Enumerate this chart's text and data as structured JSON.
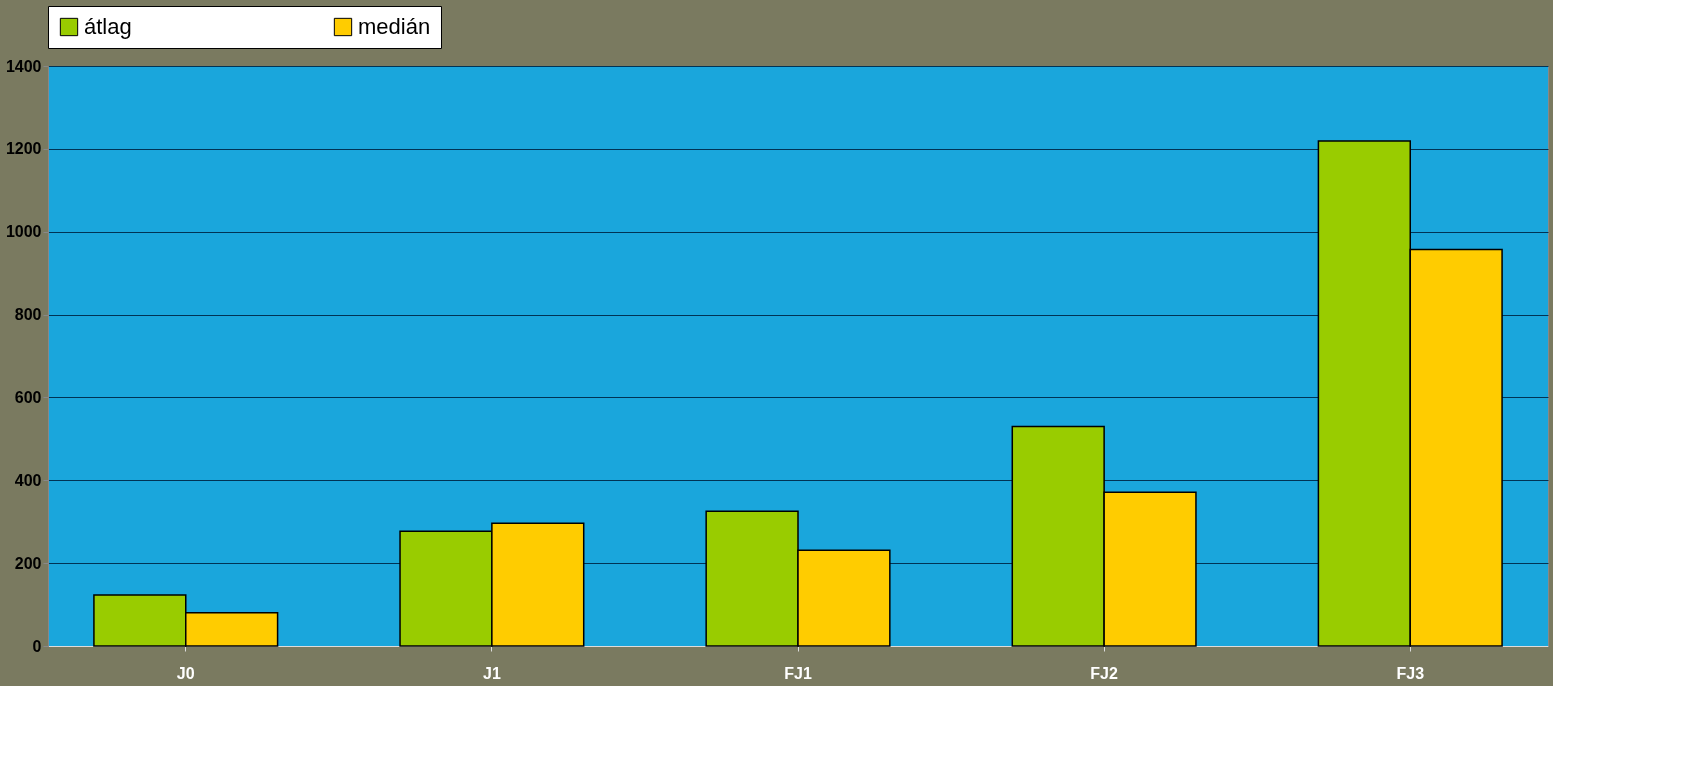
{
  "chart_data": {
    "type": "bar",
    "categories": [
      "J0",
      "J1",
      "FJ1",
      "FJ2",
      "FJ3"
    ],
    "series": [
      {
        "name": "átlag",
        "color": "#99cc00",
        "values": [
          123,
          277,
          325,
          530,
          1219
        ]
      },
      {
        "name": "medián",
        "color": "#ffcc00",
        "values": [
          80,
          296,
          231,
          371,
          957
        ]
      }
    ],
    "ylim": [
      0,
      1400
    ],
    "yticks": [
      0,
      200,
      400,
      600,
      800,
      1000,
      1200,
      1400
    ],
    "grid": "y",
    "legend": "top"
  }
}
